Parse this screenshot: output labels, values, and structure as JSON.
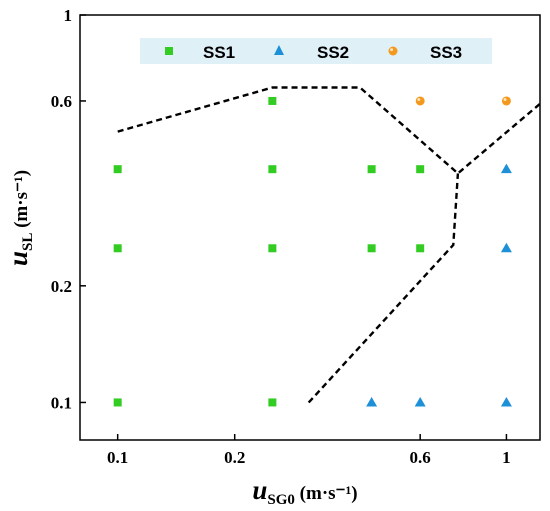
{
  "chart_data": {
    "type": "scatter",
    "x_scale": "log",
    "y_scale": "log",
    "xlim": [
      0.08,
      1.22
    ],
    "ylim": [
      0.08,
      1.0
    ],
    "x_ticks": [
      0.1,
      0.2,
      0.6,
      1
    ],
    "x_tick_labels": [
      "0.1",
      "0.2",
      "0.6",
      "1"
    ],
    "y_ticks": [
      0.1,
      0.2,
      0.6,
      1
    ],
    "y_tick_labels": [
      "0.1",
      "0.2",
      "0.6",
      "1"
    ],
    "xlabel": {
      "main": "u",
      "sub": "SG0",
      "unit": " (m·s⁻¹)"
    },
    "ylabel": {
      "main": "u",
      "sub": "SL",
      "unit": " (m·s⁻¹)"
    },
    "grid": false,
    "legend_position": "top",
    "series": [
      {
        "name": "SS1",
        "marker": "square",
        "color": "#33cc22",
        "points": [
          [
            0.1,
            0.1
          ],
          [
            0.25,
            0.1
          ],
          [
            0.1,
            0.25
          ],
          [
            0.25,
            0.25
          ],
          [
            0.45,
            0.25
          ],
          [
            0.6,
            0.25
          ],
          [
            0.1,
            0.4
          ],
          [
            0.25,
            0.4
          ],
          [
            0.45,
            0.4
          ],
          [
            0.6,
            0.4
          ],
          [
            0.25,
            0.6
          ]
        ]
      },
      {
        "name": "SS2",
        "marker": "triangle",
        "color": "#1e90d8",
        "points": [
          [
            0.45,
            0.1
          ],
          [
            0.6,
            0.1
          ],
          [
            1.0,
            0.1
          ],
          [
            1.0,
            0.25
          ],
          [
            1.0,
            0.4
          ]
        ]
      },
      {
        "name": "SS3",
        "marker": "circle",
        "color": "#f39a1e",
        "points": [
          [
            0.6,
            0.6
          ],
          [
            1.0,
            0.6
          ]
        ]
      }
    ],
    "boundaries": [
      {
        "style": "dashed",
        "points": [
          [
            0.1,
            0.5
          ],
          [
            0.25,
            0.65
          ],
          [
            0.42,
            0.65
          ],
          [
            0.75,
            0.39
          ],
          [
            1.22,
            0.59
          ]
        ]
      },
      {
        "style": "dashed",
        "points": [
          [
            0.31,
            0.1
          ],
          [
            0.73,
            0.255
          ],
          [
            0.75,
            0.39
          ]
        ]
      }
    ]
  }
}
